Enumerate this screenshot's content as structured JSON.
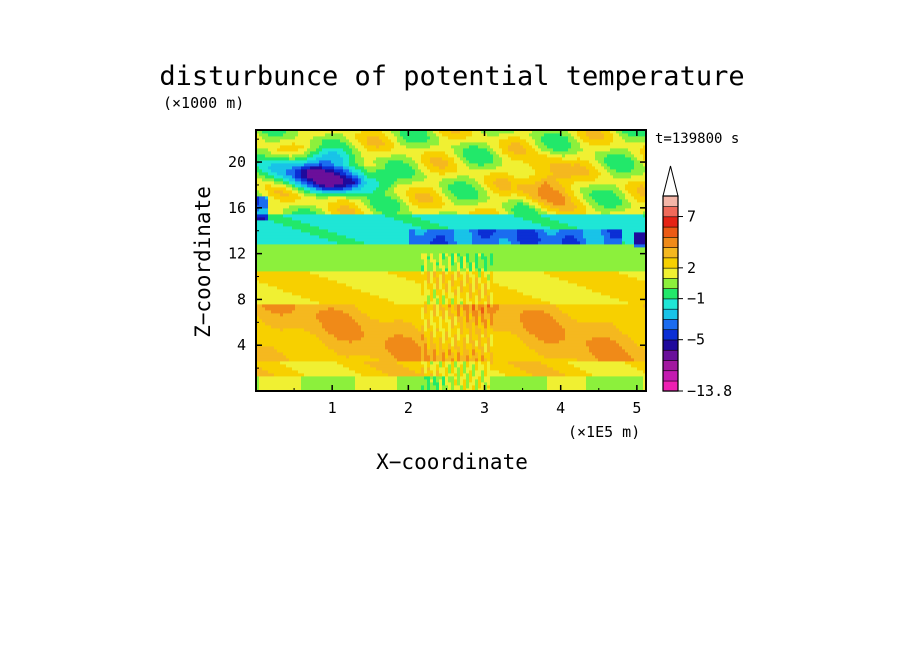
{
  "chart_data": {
    "type": "heatmap",
    "title": "disturbunce of potential temperature",
    "subtitle": "t=139800 s",
    "xlabel": "X−coordinate",
    "ylabel": "Z−coordinate",
    "x_unit": "(×1E5 m)",
    "y_unit": "(×1000 m)",
    "xlim": [
      0,
      5.12
    ],
    "ylim": [
      0,
      22.8
    ],
    "x_ticks": [
      1,
      2,
      3,
      4,
      5
    ],
    "y_ticks": [
      4,
      8,
      12,
      16,
      20
    ],
    "colorbar": {
      "labels": [
        "7",
        "2",
        "−1",
        "−5",
        "−13.8"
      ],
      "label_levels": [
        7,
        2,
        -1,
        -5,
        -13.8
      ],
      "levels": [
        -13.8,
        -12,
        -10,
        -8,
        -6,
        -5,
        -4,
        -3,
        -2,
        -1,
        0,
        1,
        2,
        3,
        4,
        5,
        6,
        7,
        8,
        9
      ],
      "colors": [
        "#ee1fb2",
        "#c41ab0",
        "#a2189f",
        "#6a0f9a",
        "#1f0a9c",
        "#0b2fd5",
        "#1a6cf0",
        "#18c3e8",
        "#1fe6d6",
        "#22e86a",
        "#8cf03c",
        "#f0f032",
        "#f7d000",
        "#f5b81f",
        "#f08a18",
        "#ec5a14",
        "#e52315",
        "#f06a5a",
        "#f4b6a8"
      ],
      "extend": "max"
    },
    "field": {
      "description_bands": [
        {
          "z_range": [
            0,
            1.5
          ],
          "value": "0 to 2"
        },
        {
          "z_range": [
            1.5,
            8
          ],
          "value": "2 to 4"
        },
        {
          "z_range": [
            8,
            11
          ],
          "value": "1 to 2"
        },
        {
          "z_range": [
            11,
            13
          ],
          "value": "0 to 1"
        },
        {
          "z_range": [
            13,
            16
          ],
          "value": "-2 to -1"
        },
        {
          "z_range": [
            16,
            22.8
          ],
          "value": "-5 to 5"
        }
      ]
    }
  }
}
